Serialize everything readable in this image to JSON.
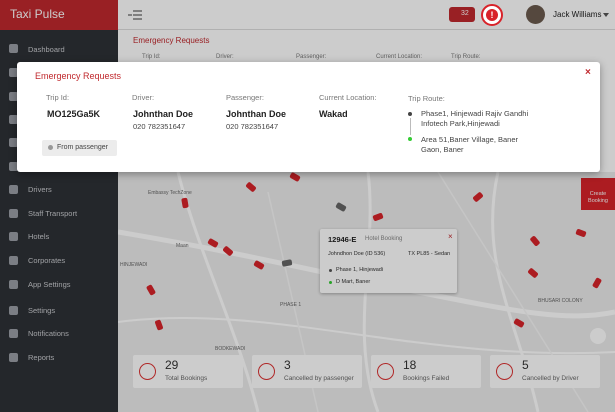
{
  "brand": "Taxi Pulse",
  "header": {
    "notification_count": 32,
    "user": "Jack Williams"
  },
  "sidebar": [
    "Dashboard",
    "Drivers",
    "Staff Transport",
    "Hotels",
    "Corporates",
    "App Settings",
    "Settings",
    "Notifications",
    "Reports"
  ],
  "background_panel": {
    "title": "Emergency Requests",
    "columns": [
      "Trip Id:",
      "Driver:",
      "Passenger:",
      "Current Location:",
      "Trip Route:"
    ]
  },
  "modal": {
    "title": "Emergency Requests",
    "trip_id": {
      "label": "Trip Id:",
      "value": "MO125Ga5K"
    },
    "driver": {
      "label": "Driver:",
      "name": "Johnthan Doe",
      "phone": "020 782351647"
    },
    "passenger": {
      "label": "Passenger:",
      "name": "Johnthan Doe",
      "phone": "020 782351647"
    },
    "location": {
      "label": "Current Location:",
      "value": "Wakad"
    },
    "route": {
      "label": "Trip Route:",
      "from": [
        "Phase1, Hinjewadi Rajiv Gandhi",
        "Infotech Park,Hinjewadi"
      ],
      "to": [
        "Area 51,Baner Village, Baner",
        "Gaon, Baner"
      ]
    },
    "source": "From passenger"
  },
  "map": {
    "labels": [
      "Embassy TechZone",
      "Maan",
      "HINJEWADI",
      "PHASE 1",
      "BODKEWADI",
      "BHUSARI COLONY"
    ],
    "popup": {
      "id": "12946-E",
      "type": "Hotel Booking",
      "driver": "Johndhon Doe (ID 536)",
      "vehicle": "TX PL85 - Sedan",
      "from": "Phase 1, Hinjewadi",
      "to": "D Mart, Baner"
    },
    "create_booking": [
      "Create",
      "Booking"
    ]
  },
  "stats": [
    {
      "value": 29,
      "label": "Total Bookings"
    },
    {
      "value": 3,
      "label": "Cancelled by passenger"
    },
    {
      "value": 18,
      "label": "Bookings Failed"
    },
    {
      "value": 5,
      "label": "Cancelled by Driver"
    }
  ]
}
